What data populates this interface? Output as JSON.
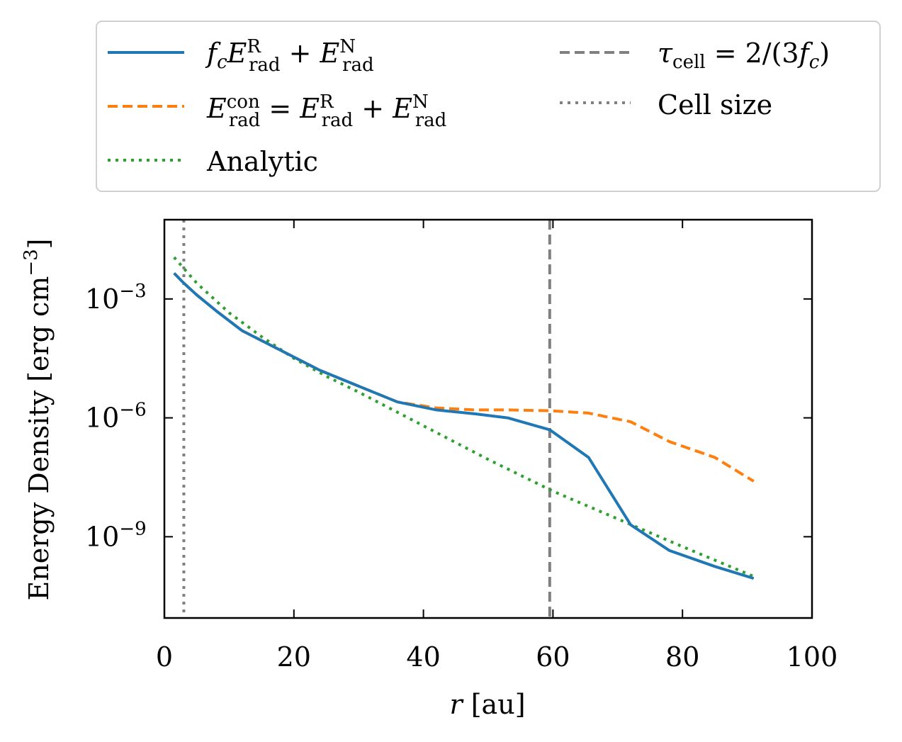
{
  "chart_data": {
    "type": "line",
    "title": "",
    "xlabel": "r [au]",
    "ylabel": "Energy Density [erg cm^-3]",
    "xlim": [
      0,
      100
    ],
    "ylim_log10": [
      -11.05,
      -1.0
    ],
    "yscale": "log",
    "x_ticks": [
      0,
      20,
      40,
      60,
      80,
      100
    ],
    "x_tick_labels": [
      "0",
      "20",
      "40",
      "60",
      "80",
      "100"
    ],
    "y_ticks_log10": [
      -3,
      -6,
      -9
    ],
    "y_tick_labels": [
      {
        "base": "10",
        "exp": "−3"
      },
      {
        "base": "10",
        "exp": "−6"
      },
      {
        "base": "10",
        "exp": "−9"
      }
    ],
    "series": [
      {
        "name": "fc E_rad^R + E_rad^N",
        "color": "#1f77b4",
        "style": "solid",
        "x": [
          1.5,
          3,
          5,
          8,
          12,
          18,
          24,
          30,
          36,
          42,
          48,
          53,
          59.5,
          65.5,
          72,
          78,
          85,
          91
        ],
        "log10y": [
          -2.35,
          -2.6,
          -2.9,
          -3.3,
          -3.8,
          -4.3,
          -4.8,
          -5.2,
          -5.6,
          -5.8,
          -5.9,
          -6.0,
          -6.3,
          -7.0,
          -8.7,
          -9.35,
          -9.75,
          -10.05
        ]
      },
      {
        "name": "E_rad^con = E_rad^R + E_rad^N",
        "color": "#ff7f0e",
        "style": "dashed",
        "x": [
          1.5,
          3,
          5,
          8,
          12,
          18,
          24,
          30,
          36,
          42,
          48,
          53,
          59.5,
          65.5,
          72,
          78,
          85,
          91
        ],
        "log10y": [
          -2.35,
          -2.6,
          -2.9,
          -3.3,
          -3.8,
          -4.3,
          -4.8,
          -5.2,
          -5.6,
          -5.75,
          -5.8,
          -5.8,
          -5.82,
          -5.88,
          -6.1,
          -6.6,
          -7.0,
          -7.6
        ]
      },
      {
        "name": "Analytic",
        "color": "#2ca02c",
        "style": "dotted",
        "x": [
          1.5,
          5,
          10,
          15,
          20,
          25,
          30,
          40,
          50,
          60,
          70,
          80,
          91
        ],
        "log10y": [
          -1.95,
          -2.6,
          -3.35,
          -3.95,
          -4.5,
          -4.95,
          -5.35,
          -6.2,
          -7.05,
          -7.85,
          -8.55,
          -9.25,
          -10.0
        ]
      }
    ],
    "vlines": [
      {
        "name": "tau_cell = 2/(3fc)",
        "x": 59.5,
        "color": "#808080",
        "style": "dashed"
      },
      {
        "name": "Cell size",
        "x": 3,
        "color": "#808080",
        "style": "dotted"
      }
    ],
    "legend": {
      "placement": "above",
      "columns": 2,
      "entries": [
        {
          "text_main": "fcE",
          "latex": "f_c E_rad^R + E_rad^N"
        },
        {
          "latex": "E_rad^con = E_rad^R + E_rad^N"
        },
        {
          "label": "Analytic"
        },
        {
          "latex": "τ_cell = 2/(3f_c)"
        },
        {
          "label": "Cell size"
        }
      ]
    }
  }
}
